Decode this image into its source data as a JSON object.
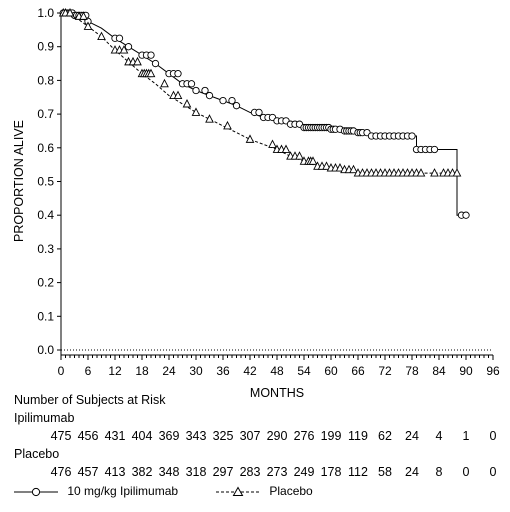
{
  "chart_data": {
    "type": "line",
    "xlabel": "MONTHS",
    "ylabel": "PROPORTION ALIVE",
    "xlim": [
      0,
      96
    ],
    "ylim": [
      0.0,
      1.0
    ],
    "x_ticks": [
      0,
      6,
      12,
      18,
      24,
      30,
      36,
      42,
      48,
      54,
      60,
      66,
      72,
      78,
      84,
      90,
      96
    ],
    "y_ticks": [
      0.0,
      0.1,
      0.2,
      0.3,
      0.4,
      0.5,
      0.6,
      0.7,
      0.8,
      0.9,
      1.0
    ],
    "x_minor_step": 1,
    "grid": false,
    "series": [
      {
        "name": "10 mg/kg Ipilimumab",
        "style": "solid",
        "marker": "circle",
        "points": [
          [
            0,
            1.0
          ],
          [
            3,
            0.993
          ],
          [
            6,
            0.975
          ],
          [
            9,
            0.955
          ],
          [
            12,
            0.925
          ],
          [
            15,
            0.9
          ],
          [
            18,
            0.875
          ],
          [
            21,
            0.85
          ],
          [
            24,
            0.82
          ],
          [
            27,
            0.79
          ],
          [
            30,
            0.77
          ],
          [
            33,
            0.755
          ],
          [
            36,
            0.74
          ],
          [
            39,
            0.725
          ],
          [
            42,
            0.705
          ],
          [
            45,
            0.69
          ],
          [
            48,
            0.68
          ],
          [
            51,
            0.67
          ],
          [
            54,
            0.66
          ],
          [
            57,
            0.66
          ],
          [
            60,
            0.655
          ],
          [
            63,
            0.65
          ],
          [
            66,
            0.645
          ],
          [
            69,
            0.635
          ],
          [
            72,
            0.635
          ],
          [
            76,
            0.635
          ],
          [
            79,
            0.635
          ],
          [
            79,
            0.595
          ],
          [
            83,
            0.595
          ],
          [
            88,
            0.595
          ],
          [
            88,
            0.4
          ],
          [
            90,
            0.4
          ]
        ],
        "censor_x": [
          0.5,
          1,
          1.5,
          2,
          2.5,
          3,
          3.5,
          4,
          4.5,
          5,
          5.5,
          6,
          12,
          13,
          15,
          18,
          19,
          20,
          21,
          24,
          25,
          26,
          27,
          28,
          29,
          30,
          32,
          33,
          36,
          38,
          39,
          43,
          44,
          45,
          46,
          47,
          48,
          49,
          50,
          51,
          52,
          53,
          54,
          54.5,
          55,
          55.5,
          56,
          56.5,
          57,
          57.5,
          58,
          58.5,
          59,
          59.5,
          60,
          60.5,
          61,
          62,
          63,
          63.5,
          64,
          64.5,
          65,
          66,
          66.5,
          67,
          68,
          69,
          70,
          71,
          72,
          73,
          74,
          75,
          76,
          77,
          78,
          79,
          80,
          81,
          82,
          83,
          89,
          90
        ]
      },
      {
        "name": "Placebo",
        "style": "dashed",
        "marker": "triangle",
        "points": [
          [
            0,
            1.0
          ],
          [
            3,
            0.99
          ],
          [
            6,
            0.96
          ],
          [
            9,
            0.93
          ],
          [
            12,
            0.89
          ],
          [
            15,
            0.855
          ],
          [
            18,
            0.82
          ],
          [
            21,
            0.79
          ],
          [
            24,
            0.755
          ],
          [
            27,
            0.73
          ],
          [
            30,
            0.705
          ],
          [
            33,
            0.685
          ],
          [
            36,
            0.665
          ],
          [
            39,
            0.645
          ],
          [
            42,
            0.625
          ],
          [
            45,
            0.61
          ],
          [
            48,
            0.595
          ],
          [
            51,
            0.575
          ],
          [
            54,
            0.56
          ],
          [
            57,
            0.545
          ],
          [
            60,
            0.54
          ],
          [
            63,
            0.535
          ],
          [
            66,
            0.525
          ],
          [
            69,
            0.525
          ],
          [
            72,
            0.525
          ],
          [
            76,
            0.525
          ],
          [
            80,
            0.525
          ],
          [
            84,
            0.525
          ],
          [
            88,
            0.525
          ]
        ],
        "censor_x": [
          0.5,
          1,
          2,
          4,
          5,
          6,
          9,
          12,
          13,
          14,
          15,
          16,
          17,
          18,
          18.5,
          19,
          19.5,
          20,
          23,
          25,
          26,
          28,
          30,
          33,
          37,
          42,
          47,
          48,
          49,
          50,
          51,
          52,
          53,
          54,
          55,
          55.5,
          56,
          57,
          58,
          59,
          60,
          61,
          62,
          63,
          64,
          65,
          66,
          67,
          68,
          69,
          70,
          71,
          72,
          73,
          74,
          75,
          76,
          77,
          78,
          79,
          80,
          83,
          85,
          86,
          87,
          88
        ]
      }
    ]
  },
  "risk_table": {
    "title": "Number of Subjects at Risk",
    "groups": [
      {
        "label": "Ipilimumab",
        "values": [
          "475",
          "456",
          "431",
          "404",
          "369",
          "343",
          "325",
          "307",
          "290",
          "276",
          "199",
          "119",
          "62",
          "24",
          "4",
          "1",
          "0"
        ]
      },
      {
        "label": "Placebo",
        "values": [
          "476",
          "457",
          "413",
          "382",
          "348",
          "318",
          "297",
          "283",
          "273",
          "249",
          "178",
          "112",
          "58",
          "24",
          "8",
          "0",
          "0"
        ]
      }
    ]
  }
}
